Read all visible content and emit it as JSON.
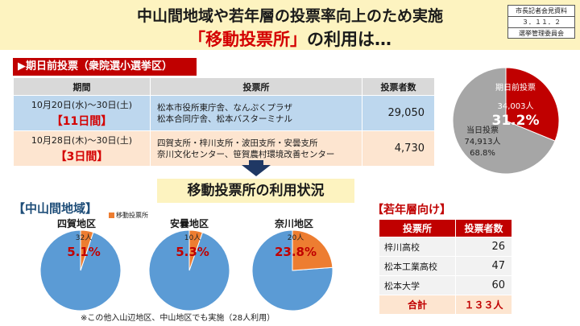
{
  "header": {
    "title_line1": "中山間地域や若年層の投票率向上のため実施",
    "title_line2_red": "「移動投票所」",
    "title_line2_rest": "の利用は…",
    "stamp": [
      "市長記者会見資料",
      "３．１１．２",
      "選挙管理委員会"
    ]
  },
  "early_voting": {
    "label": "▶期日前投票（衆院選小選挙区）",
    "columns": [
      "期間",
      "投票所",
      "投票者数"
    ],
    "rows": [
      {
        "period": "10月20日(水)～30日(土)",
        "days": "【11日間】",
        "places_1": "松本市役所東庁舎、なんぷくプラザ",
        "places_2": "松本合同庁舎、松本バスターミナル",
        "voters": "29,050"
      },
      {
        "period": "10月28日(木)～30日(土)",
        "days": "【3日間】",
        "places_1": "四賀支所・梓川支所・波田支所・安曇支所",
        "places_2": "奈川文化センター、笹賀農村環境改善センター",
        "voters": "4,730"
      }
    ]
  },
  "overall_pie": {
    "early_label": "期日前投票",
    "early_count": "34,003人",
    "early_pct": "31.2%",
    "same_label": "当日投票",
    "same_count": "74,913人",
    "same_pct": "68.8%",
    "colors": {
      "early": "#c00000",
      "same": "#a6a6a6"
    }
  },
  "usage": {
    "title": "移動投票所の利用状況",
    "area_title": "【中山間地域】",
    "legend": "移動投票所",
    "note": "※この他入山辺地区、中山地区でも実施（28人利用）"
  },
  "chart_data": {
    "type": "pie",
    "charts": [
      {
        "title": "四賀地区",
        "count_label": "32人",
        "pct_label": "5.1%",
        "value": 5.1
      },
      {
        "title": "安曇地区",
        "count_label": "10人",
        "pct_label": "5.3%",
        "value": 5.3
      },
      {
        "title": "奈川地区",
        "count_label": "20人",
        "pct_label": "23.8%",
        "value": 23.8
      }
    ],
    "colors": {
      "mobile": "#ed7d31",
      "other": "#5b9bd5"
    }
  },
  "youth": {
    "title": "【若年層向け】",
    "columns": [
      "投票所",
      "投票者数"
    ],
    "rows": [
      {
        "school": "梓川高校",
        "voters": "26"
      },
      {
        "school": "松本工業高校",
        "voters": "47"
      },
      {
        "school": "松本大学",
        "voters": "60"
      }
    ],
    "total_label": "合計",
    "total_value": "１３３人"
  }
}
